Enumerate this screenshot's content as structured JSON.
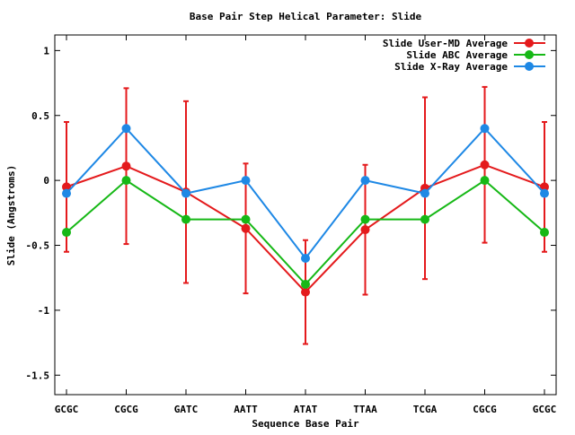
{
  "chart_data": {
    "type": "line",
    "title": "Base Pair Step Helical Parameter: Slide",
    "xlabel": "Sequence Base Pair",
    "ylabel": "Slide (Angstroms)",
    "categories": [
      "GCGC",
      "CGCG",
      "GATC",
      "AATT",
      "ATAT",
      "TTAA",
      "TCGA",
      "CGCG",
      "GCGC"
    ],
    "ylim": [
      -1.65,
      1.12
    ],
    "yticks": [
      {
        "value": 1,
        "label": "1"
      },
      {
        "value": 0.5,
        "label": "0.5"
      },
      {
        "value": 0,
        "label": "0"
      },
      {
        "value": -0.5,
        "label": "-0.5"
      },
      {
        "value": -1,
        "label": "-1"
      },
      {
        "value": -1.5,
        "label": "-1.5"
      }
    ],
    "legend_position": "top-right",
    "series": [
      {
        "name": "Slide User-MD Average",
        "color": "#e41a1c",
        "values": [
          -0.05,
          0.11,
          -0.09,
          -0.37,
          -0.86,
          -0.38,
          -0.06,
          0.12,
          -0.05
        ],
        "error": [
          0.5,
          0.6,
          0.7,
          0.5,
          0.4,
          0.5,
          0.7,
          0.6,
          0.5
        ]
      },
      {
        "name": "Slide ABC Average",
        "color": "#16b816",
        "values": [
          -0.4,
          0.0,
          -0.3,
          -0.3,
          -0.8,
          -0.3,
          -0.3,
          0.0,
          -0.4
        ]
      },
      {
        "name": "Slide X-Ray Average",
        "color": "#1e88e5",
        "values": [
          -0.1,
          0.4,
          -0.1,
          0.0,
          -0.6,
          0.0,
          -0.1,
          0.4,
          -0.1
        ]
      }
    ]
  }
}
